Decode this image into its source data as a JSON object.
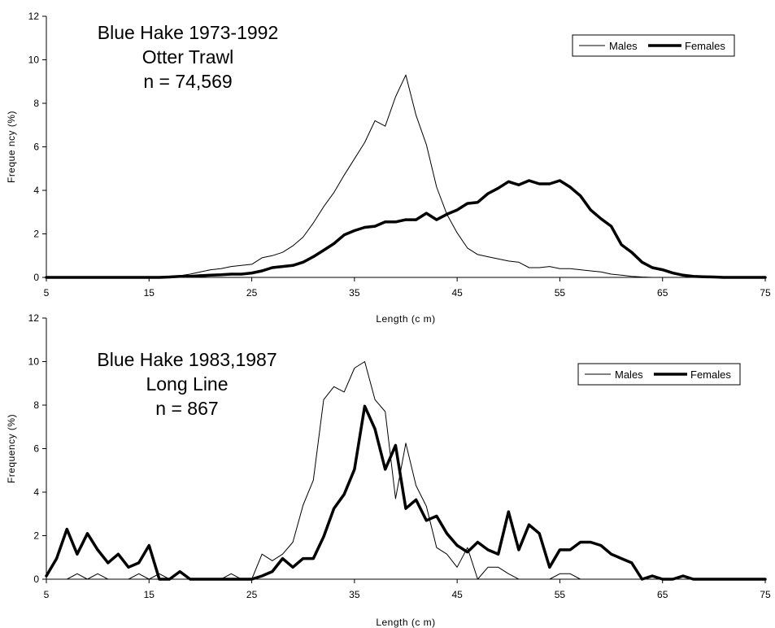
{
  "chart_data": [
    {
      "type": "line",
      "title_lines": [
        "Blue Hake 1973-1992",
        "Otter Trawl",
        "n = 74,569"
      ],
      "xlabel": "Length (c m)",
      "ylabel": "Freque ncy (%)",
      "xlim": [
        5,
        75
      ],
      "ylim": [
        0,
        12
      ],
      "x_ticks": [
        "5",
        "15",
        "25",
        "35",
        "45",
        "55",
        "65",
        "75"
      ],
      "y_ticks": [
        "0",
        "2",
        "4",
        "6",
        "8",
        "10",
        "12"
      ],
      "legend_position": "top-right",
      "x": [
        5,
        6,
        7,
        8,
        9,
        10,
        11,
        12,
        13,
        14,
        15,
        16,
        17,
        18,
        19,
        20,
        21,
        22,
        23,
        24,
        25,
        26,
        27,
        28,
        29,
        30,
        31,
        32,
        33,
        34,
        35,
        36,
        37,
        38,
        39,
        40,
        41,
        42,
        43,
        44,
        45,
        46,
        47,
        48,
        49,
        50,
        51,
        52,
        53,
        54,
        55,
        56,
        57,
        58,
        59,
        60,
        61,
        62,
        63,
        64,
        65,
        66,
        67,
        68,
        69,
        70,
        71,
        72,
        73,
        74,
        75
      ],
      "series": [
        {
          "name": "Males",
          "style": "thin",
          "values": [
            0,
            0,
            0,
            0,
            0,
            0,
            0,
            0,
            0,
            0,
            0,
            0.02,
            0.05,
            0.08,
            0.15,
            0.25,
            0.35,
            0.4,
            0.5,
            0.55,
            0.6,
            0.9,
            1.0,
            1.15,
            1.45,
            1.85,
            2.5,
            3.25,
            3.9,
            4.7,
            5.45,
            6.2,
            7.2,
            6.95,
            8.3,
            9.3,
            7.45,
            6.1,
            4.15,
            2.9,
            2.05,
            1.35,
            1.05,
            0.95,
            0.85,
            0.75,
            0.7,
            0.45,
            0.45,
            0.5,
            0.4,
            0.4,
            0.35,
            0.3,
            0.25,
            0.15,
            0.1,
            0.05,
            0.02,
            0,
            0,
            0,
            0,
            0,
            0,
            0,
            0,
            0,
            0,
            0,
            0
          ]
        },
        {
          "name": "Females",
          "style": "thick",
          "values": [
            0,
            0,
            0,
            0,
            0,
            0,
            0,
            0,
            0,
            0,
            0,
            0,
            0.02,
            0.05,
            0.05,
            0.08,
            0.1,
            0.12,
            0.15,
            0.15,
            0.2,
            0.3,
            0.45,
            0.5,
            0.55,
            0.7,
            0.95,
            1.25,
            1.55,
            1.95,
            2.15,
            2.3,
            2.35,
            2.55,
            2.55,
            2.65,
            2.65,
            2.95,
            2.65,
            2.9,
            3.1,
            3.4,
            3.45,
            3.85,
            4.1,
            4.4,
            4.25,
            4.45,
            4.3,
            4.3,
            4.45,
            4.15,
            3.75,
            3.1,
            2.7,
            2.35,
            1.5,
            1.15,
            0.7,
            0.45,
            0.35,
            0.2,
            0.1,
            0.05,
            0.03,
            0.02,
            0,
            0,
            0,
            0,
            0
          ]
        }
      ]
    },
    {
      "type": "line",
      "title_lines": [
        "Blue Hake 1983,1987",
        "Long Line",
        "n = 867"
      ],
      "xlabel": "Length (c m)",
      "ylabel": "Frequency (%)",
      "xlim": [
        5,
        75
      ],
      "ylim": [
        0,
        12
      ],
      "x_ticks": [
        "5",
        "15",
        "25",
        "35",
        "45",
        "55",
        "65",
        "75"
      ],
      "y_ticks": [
        "0",
        "2",
        "4",
        "6",
        "8",
        "10",
        "12"
      ],
      "legend_position": "top-right",
      "x": [
        5,
        6,
        7,
        8,
        9,
        10,
        11,
        12,
        13,
        14,
        15,
        16,
        17,
        18,
        19,
        20,
        21,
        22,
        23,
        24,
        25,
        26,
        27,
        28,
        29,
        30,
        31,
        32,
        33,
        34,
        35,
        36,
        37,
        38,
        39,
        40,
        41,
        42,
        43,
        44,
        45,
        46,
        47,
        48,
        49,
        50,
        51,
        52,
        53,
        54,
        55,
        56,
        57,
        58,
        59,
        60,
        61,
        62,
        63,
        64,
        65,
        66,
        67,
        68,
        69,
        70,
        71,
        72,
        73,
        74,
        75
      ],
      "series": [
        {
          "name": "Males",
          "style": "thin",
          "values": [
            0,
            0,
            0,
            0.25,
            0,
            0.25,
            0,
            0,
            0,
            0.25,
            0,
            0.25,
            0,
            0,
            0,
            0,
            0,
            0,
            0.25,
            0,
            0,
            1.15,
            0.85,
            1.15,
            1.7,
            3.4,
            4.55,
            8.25,
            8.85,
            8.6,
            9.7,
            10.0,
            8.25,
            7.7,
            3.7,
            6.25,
            4.3,
            3.35,
            1.45,
            1.15,
            0.55,
            1.45,
            0,
            0.55,
            0.55,
            0.25,
            0,
            0,
            0,
            0,
            0.25,
            0.25,
            0,
            0,
            0,
            0,
            0,
            0,
            0,
            0,
            0,
            0,
            0,
            0,
            0,
            0,
            0,
            0,
            0,
            0,
            0
          ]
        },
        {
          "name": "Females",
          "style": "thick",
          "values": [
            0.15,
            0.95,
            2.3,
            1.15,
            2.1,
            1.35,
            0.75,
            1.15,
            0.55,
            0.75,
            1.55,
            0,
            0,
            0.35,
            0,
            0,
            0,
            0,
            0,
            0,
            0,
            0.15,
            0.35,
            0.95,
            0.55,
            0.95,
            0.95,
            1.95,
            3.25,
            3.9,
            5.05,
            7.95,
            6.9,
            5.05,
            6.15,
            3.25,
            3.65,
            2.7,
            2.9,
            2.1,
            1.55,
            1.25,
            1.7,
            1.35,
            1.15,
            3.1,
            1.35,
            2.5,
            2.1,
            0.55,
            1.35,
            1.35,
            1.7,
            1.7,
            1.55,
            1.15,
            0.95,
            0.75,
            0,
            0.15,
            0,
            0,
            0.15,
            0,
            0,
            0,
            0,
            0,
            0,
            0,
            0
          ]
        }
      ]
    }
  ]
}
